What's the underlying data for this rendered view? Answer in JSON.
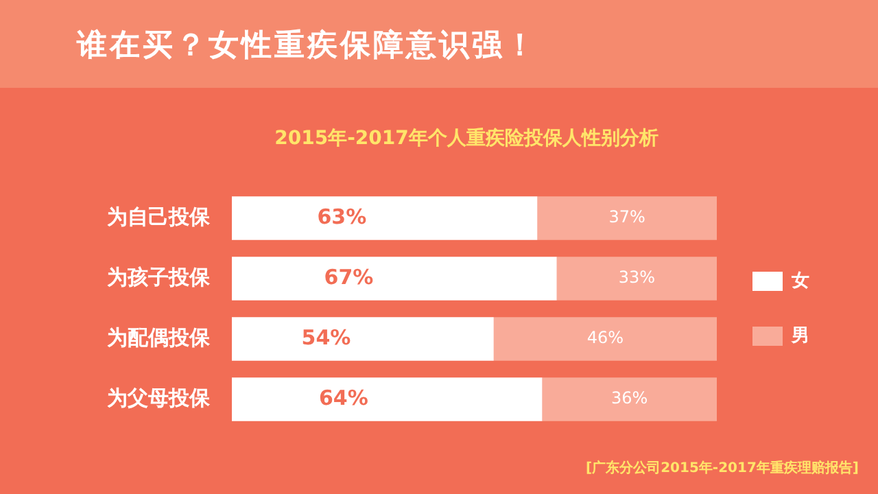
{
  "chart_data": {
    "type": "bar",
    "orientation": "horizontal",
    "stacked": true,
    "title": "谁在买？女性重疾保障意识强！",
    "subtitle": "2015年-2017年个人重疾险投保人性别分析",
    "categories": [
      "为自己投保",
      "为孩子投保",
      "为配偶投保",
      "为父母投保"
    ],
    "series": [
      {
        "name": "女",
        "color": "#ffffff",
        "values": [
          63,
          67,
          54,
          64
        ],
        "value_labels": [
          "63%",
          "67%",
          "54%",
          "64%"
        ]
      },
      {
        "name": "男",
        "color": "#f9ab99",
        "values": [
          37,
          33,
          46,
          36
        ],
        "value_labels": [
          "37%",
          "33%",
          "46%",
          "36%"
        ]
      }
    ],
    "xlim": [
      0,
      100
    ],
    "tick_labels": "y",
    "legend": "right",
    "annotations": [
      "[广东分公司2015年-2017年重疾理赔报告]"
    ]
  }
}
